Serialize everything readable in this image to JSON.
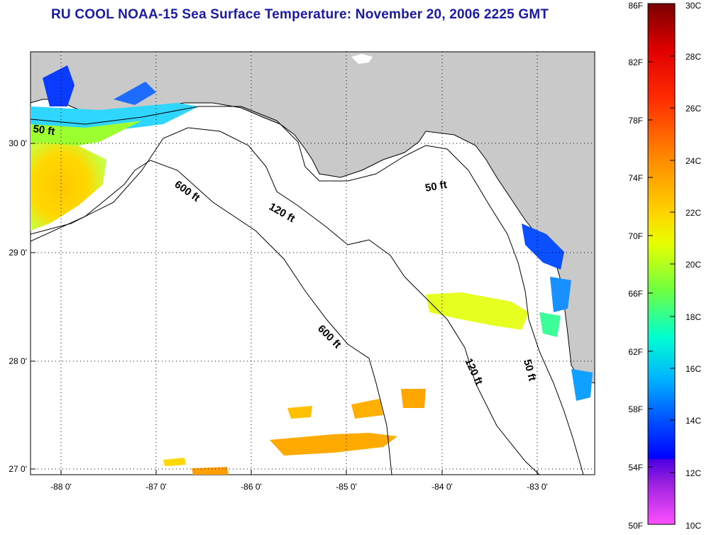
{
  "title": "RU COOL  NOAA-15  Sea Surface Temperature:  November 20, 2006 2225 GMT",
  "map": {
    "lon_ticks": [
      "-88 0'",
      "-87 0'",
      "-86 0'",
      "-85 0'",
      "-84 0'",
      "-83 0'"
    ],
    "lat_ticks": [
      "30 0'",
      "29 0'",
      "28 0'",
      "27 0'"
    ],
    "depth_contours": [
      "50 ft",
      "120 ft",
      "600 ft"
    ],
    "contour_labels": [
      {
        "text": "50 ft"
      },
      {
        "text": "600 ft"
      },
      {
        "text": "120 ft"
      },
      {
        "text": "50 ft"
      },
      {
        "text": "600 ft"
      },
      {
        "text": "120 ft"
      },
      {
        "text": "50 ft"
      }
    ],
    "land_color": "#c9c9c9"
  },
  "colorbar": {
    "fahrenheit_labels": [
      "86F",
      "82F",
      "78F",
      "74F",
      "70F",
      "66F",
      "62F",
      "58F",
      "54F",
      "50F"
    ],
    "celsius_labels": [
      "30C",
      "28C",
      "26C",
      "24C",
      "22C",
      "20C",
      "18C",
      "16C",
      "14C",
      "12C",
      "10C"
    ],
    "colors": [
      "#7a0000",
      "#ff0000",
      "#ff7a00",
      "#ffd000",
      "#e6ff00",
      "#7cff3a",
      "#00ffc8",
      "#00c8ff",
      "#0060ff",
      "#0000ff",
      "#6a00c8",
      "#ff40ff"
    ]
  }
}
